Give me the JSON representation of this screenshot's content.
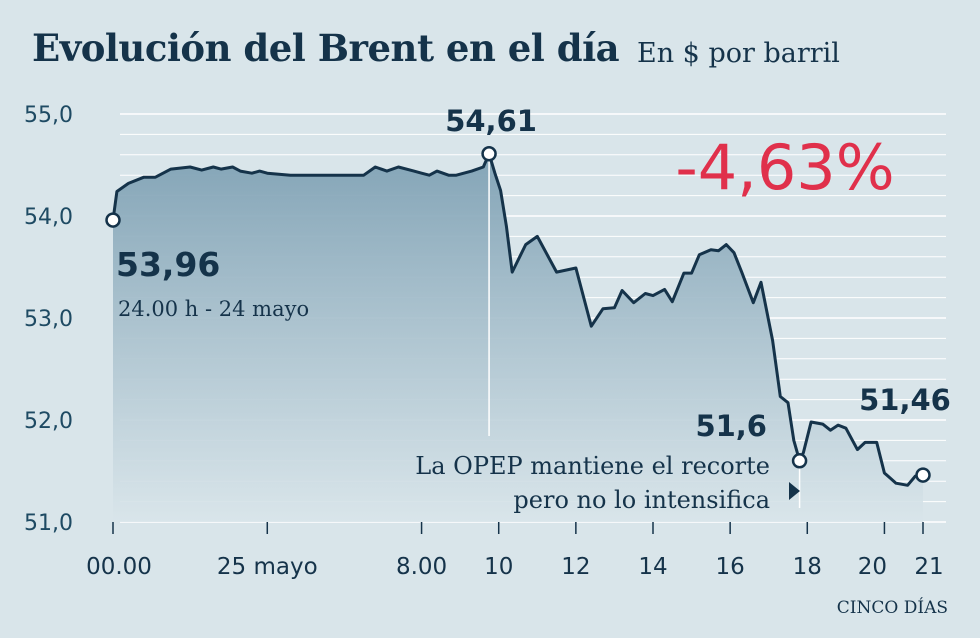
{
  "header": {
    "title": "Evolución del Brent en el día",
    "subtitle": "En $ por barril"
  },
  "source": "CINCO DÍAS",
  "colors": {
    "background": "#d9e5ea",
    "line": "#15334a",
    "area_top": "#7fa1b4",
    "highlight": "#e0304b",
    "grid": "#ffffff"
  },
  "chart_data": {
    "type": "area",
    "title": "Evolución del Brent en el día",
    "subtitle": "En $ por barril",
    "ylim": [
      51.0,
      55.0
    ],
    "y_ticks": [
      "55,0",
      "54,0",
      "53,0",
      "52,0",
      "51,0"
    ],
    "y_tick_values": [
      55.0,
      54.0,
      53.0,
      52.0,
      51.0
    ],
    "x_ticks": [
      "00.00",
      "25 mayo",
      "8.00",
      "10",
      "12",
      "14",
      "16",
      "18",
      "20",
      "21"
    ],
    "x_tick_hours": [
      0,
      4,
      8,
      10,
      12,
      14,
      16,
      18,
      20,
      21
    ],
    "grid": true,
    "highlight_change": "-4,63%",
    "series": [
      {
        "x": [
          0,
          0.1,
          0.4,
          0.8,
          1.1,
          1.5,
          2.0,
          2.3,
          2.6,
          2.8,
          3.1,
          3.3,
          3.6,
          3.8,
          4.0,
          4.3,
          4.6,
          5.0,
          5.5,
          6.0,
          6.5,
          6.8,
          7.1,
          7.4,
          7.8,
          8.0,
          8.2,
          8.4,
          8.7,
          8.9,
          9.3,
          9.6,
          9.75,
          9.9,
          10.05,
          10.2,
          10.35,
          10.7,
          11.0,
          11.5,
          12.0,
          12.4,
          12.7,
          13.0,
          13.2,
          13.5,
          13.8,
          14.0,
          14.3,
          14.5,
          14.8,
          15.0,
          15.2,
          15.5,
          15.7,
          15.9,
          16.1,
          16.3,
          16.6,
          16.8,
          17.1,
          17.3,
          17.5,
          17.65,
          17.8,
          17.9,
          18.1,
          18.4,
          18.6,
          18.8,
          19.0,
          19.3,
          19.5,
          19.8,
          20.0,
          20.3,
          20.6,
          20.8,
          21.0
        ],
        "y": [
          53.96,
          54.24,
          54.32,
          54.38,
          54.38,
          54.46,
          54.48,
          54.45,
          54.48,
          54.46,
          54.48,
          54.44,
          54.42,
          54.44,
          54.42,
          54.41,
          54.4,
          54.4,
          54.4,
          54.4,
          54.4,
          54.48,
          54.44,
          54.48,
          54.44,
          54.42,
          54.4,
          54.44,
          54.4,
          54.4,
          54.44,
          54.48,
          54.61,
          54.42,
          54.25,
          53.9,
          53.45,
          53.72,
          53.8,
          53.45,
          53.49,
          52.92,
          53.09,
          53.1,
          53.27,
          53.15,
          53.24,
          53.22,
          53.28,
          53.16,
          53.44,
          53.44,
          53.62,
          53.67,
          53.66,
          53.72,
          53.64,
          53.45,
          53.15,
          53.35,
          52.78,
          52.23,
          52.17,
          51.8,
          51.6,
          51.68,
          51.98,
          51.96,
          51.9,
          51.95,
          51.92,
          51.71,
          51.78,
          51.78,
          51.48,
          51.38,
          51.36,
          51.45,
          51.46
        ]
      }
    ],
    "annotations": [
      {
        "label": "53,96",
        "sublabel": "24.00 h - 24 mayo",
        "x": 0,
        "y": 53.96
      },
      {
        "label": "54,61",
        "x": 9.75,
        "y": 54.61
      },
      {
        "label": "51,6",
        "x": 17.8,
        "y": 51.6,
        "note": "La OPEP mantiene el recorte pero no lo intensifica"
      },
      {
        "label": "51,46",
        "x": 21.0,
        "y": 51.46
      }
    ]
  }
}
